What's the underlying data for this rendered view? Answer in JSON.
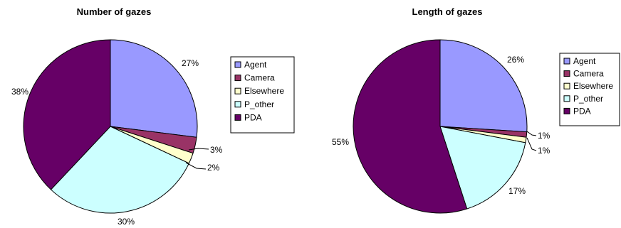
{
  "chart_data": [
    {
      "type": "pie",
      "title": "Number of gazes",
      "slices": [
        {
          "label": "Agent",
          "value": 27,
          "label_text": "27%"
        },
        {
          "label": "Camera",
          "value": 3,
          "label_text": "3%"
        },
        {
          "label": "Elsewhere",
          "value": 2,
          "label_text": "2%"
        },
        {
          "label": "P_other",
          "value": 30,
          "label_text": "30%"
        },
        {
          "label": "PDA",
          "value": 38,
          "label_text": "38%"
        }
      ],
      "legend": [
        "Agent",
        "Camera",
        "Elsewhere",
        "P_other",
        "PDA"
      ],
      "legend_position": "right"
    },
    {
      "type": "pie",
      "title": "Length of gazes",
      "slices": [
        {
          "label": "Agent",
          "value": 26,
          "label_text": "26%"
        },
        {
          "label": "Camera",
          "value": 1,
          "label_text": "1%"
        },
        {
          "label": "Elsewhere",
          "value": 1,
          "label_text": "1%"
        },
        {
          "label": "P_other",
          "value": 17,
          "label_text": "17%"
        },
        {
          "label": "PDA",
          "value": 55,
          "label_text": "55%"
        }
      ],
      "legend": [
        "Agent",
        "Camera",
        "Elsewhere",
        "P_other",
        "PDA"
      ],
      "legend_position": "right"
    }
  ],
  "colors": {
    "Agent": "#9999ff",
    "Camera": "#993366",
    "Elsewhere": "#ffffcc",
    "P_other": "#ccffff",
    "PDA": "#660066"
  }
}
